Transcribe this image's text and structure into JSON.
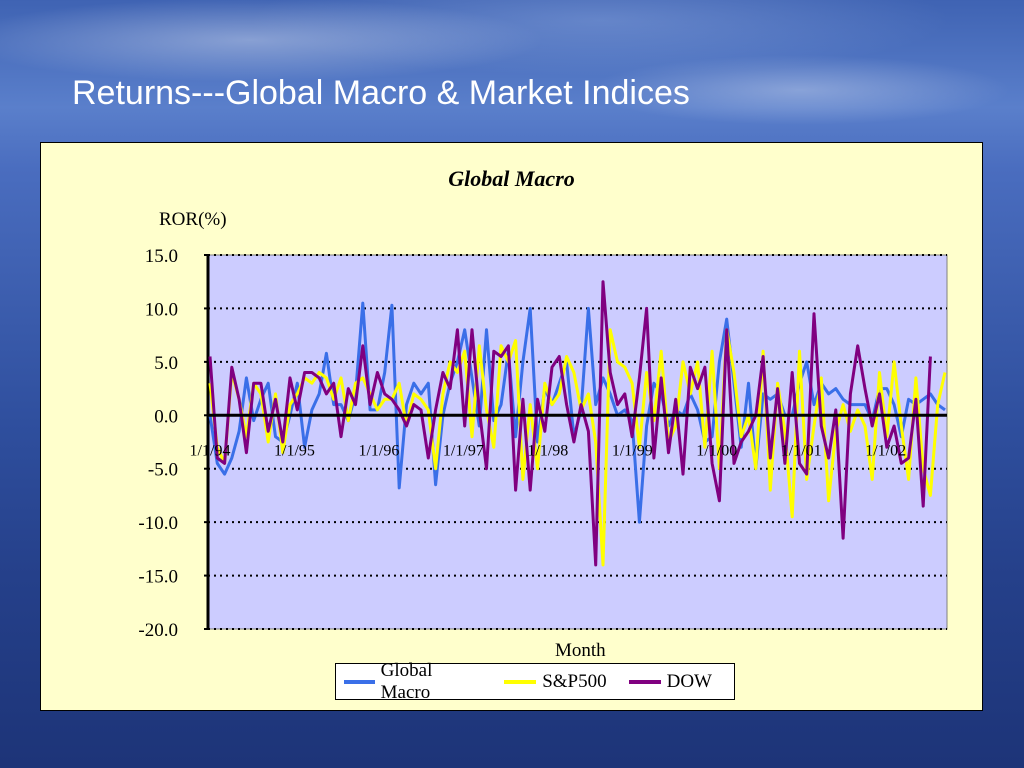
{
  "slide": {
    "title": "Returns---Global Macro & Market Indices"
  },
  "colors": {
    "global_macro": "#3a6fe8",
    "sp500": "#ffff00",
    "dow": "#800080",
    "plot_bg": "#ccccff",
    "panel_bg": "#ffffcc"
  },
  "chart_data": {
    "type": "line",
    "title": "Global Macro",
    "ylabel": "ROR(%)",
    "xlabel": "Month",
    "ylim": [
      -20,
      15
    ],
    "yticks": [
      "15.0",
      "10.0",
      "5.0",
      "0.0",
      "-5.0",
      "-10.0",
      "-15.0",
      "-20.0"
    ],
    "xtick_labels": [
      "1/1/94",
      "1/1/95",
      "1/1/96",
      "1/1/97",
      "1/1/98",
      "1/1/99",
      "1/1/00",
      "1/1/01",
      "1/1/02"
    ],
    "grid": "dotted horizontal",
    "legend_position": "bottom",
    "series": [
      {
        "name": "Global Macro",
        "color": "#3a6fe8",
        "values": [
          0.0,
          -4.5,
          -5.5,
          -4.0,
          -1.5,
          3.5,
          -0.5,
          1.5,
          3.0,
          -2.0,
          -2.5,
          0.0,
          3.0,
          -3.0,
          0.5,
          2.0,
          5.8,
          1.0,
          1.0,
          -0.5,
          2.0,
          10.5,
          0.5,
          0.5,
          4.0,
          10.3,
          -6.8,
          1.0,
          3.0,
          2.0,
          3.0,
          -6.5,
          0.0,
          3.0,
          5.0,
          8.0,
          3.5,
          -1.0,
          8.0,
          -0.5,
          1.0,
          6.0,
          -2.0,
          5.0,
          10.0,
          -2.5,
          2.5,
          1.0,
          3.0,
          5.0,
          -2.0,
          0.5,
          10.0,
          1.0,
          3.5,
          2.0,
          0.0,
          0.5,
          -0.5,
          -10.0,
          -1.0,
          3.0,
          2.0,
          -1.0,
          0.5,
          0.0,
          2.0,
          0.5,
          -2.5,
          -2.0,
          5.0,
          9.0,
          3.0,
          -3.0,
          3.0,
          -5.0,
          2.0,
          1.5,
          2.0,
          0.0,
          0.0,
          3.0,
          5.0,
          1.0,
          3.0,
          2.0,
          2.5,
          1.5,
          1.0,
          1.0,
          1.0,
          -0.5,
          2.5,
          2.5,
          1.0,
          -2.0,
          1.5,
          1.0,
          1.5,
          2.0,
          1.0,
          0.5
        ]
      },
      {
        "name": "S&P500",
        "color": "#ffff00",
        "values": [
          3.0,
          -3.0,
          -4.5,
          4.0,
          1.5,
          -2.0,
          3.0,
          2.0,
          -2.5,
          2.0,
          -3.5,
          1.0,
          2.0,
          3.5,
          3.0,
          4.0,
          3.5,
          1.5,
          3.5,
          -0.5,
          3.0,
          3.5,
          2.0,
          0.5,
          1.5,
          1.5,
          3.0,
          -1.0,
          2.0,
          1.5,
          0.5,
          -5.0,
          2.0,
          5.0,
          4.0,
          6.0,
          -2.0,
          6.5,
          0.5,
          -3.0,
          6.5,
          5.0,
          7.0,
          -6.0,
          1.0,
          -5.0,
          3.0,
          1.0,
          2.0,
          5.5,
          4.0,
          0.5,
          2.0,
          -2.5,
          -14.0,
          8.0,
          5.0,
          4.5,
          3.0,
          -3.0,
          4.0,
          -0.5,
          6.0,
          -2.5,
          -1.0,
          5.0,
          2.0,
          5.0,
          -3.0,
          6.0,
          -5.0,
          8.0,
          4.0,
          -2.0,
          0.0,
          -5.0,
          6.0,
          -7.0,
          3.0,
          -1.5,
          -9.5,
          6.0,
          -6.0,
          -1.0,
          3.5,
          -8.0,
          -1.5,
          1.0,
          -1.5,
          0.5,
          -1.0,
          -6.0,
          4.0,
          -2.0,
          5.0,
          -1.0,
          -6.0,
          3.5,
          -5.0,
          -7.5,
          1.0,
          4.0
        ]
      },
      {
        "name": "DOW",
        "color": "#800080",
        "values": [
          5.5,
          -4.0,
          -4.5,
          4.5,
          1.5,
          -3.5,
          3.0,
          3.0,
          -1.5,
          1.5,
          -2.5,
          3.5,
          0.5,
          4.0,
          4.0,
          3.5,
          2.0,
          3.0,
          -2.0,
          2.5,
          1.0,
          6.5,
          1.0,
          4.0,
          2.0,
          1.5,
          0.5,
          -1.0,
          1.0,
          0.5,
          -4.0,
          0.5,
          4.0,
          2.5,
          8.0,
          -1.0,
          8.0,
          0.5,
          -5.0,
          6.0,
          5.5,
          6.5,
          -7.0,
          1.5,
          -7.0,
          1.5,
          -1.5,
          4.5,
          5.5,
          1.0,
          -2.5,
          1.0,
          -1.5,
          -14.0,
          12.5,
          4.0,
          1.0,
          2.0,
          -2.0,
          3.5,
          10.0,
          -4.0,
          3.5,
          -3.5,
          1.5,
          -5.5,
          4.5,
          2.5,
          4.5,
          -4.5,
          -8.0,
          8.0,
          -4.5,
          -2.5,
          -1.5,
          0.0,
          5.5,
          -4.0,
          2.5,
          -4.5,
          4.0,
          -4.5,
          -5.5,
          9.5,
          -1.0,
          -4.0,
          0.5,
          -11.5,
          2.0,
          6.5,
          2.5,
          -1.0,
          2.0,
          -3.0,
          -1.0,
          -4.5,
          -4.0,
          1.5,
          -8.5,
          5.5
        ]
      }
    ]
  }
}
